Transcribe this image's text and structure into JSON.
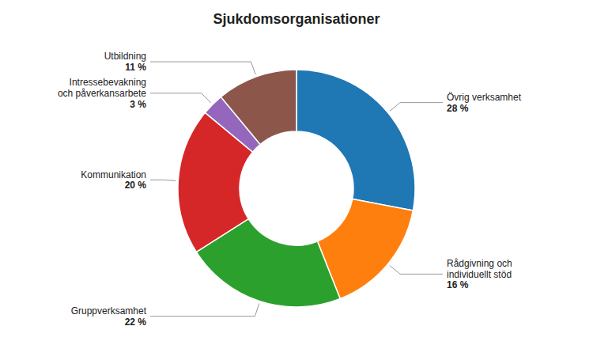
{
  "chart_data": {
    "type": "donut",
    "title": "Sjukdomsorganisationer",
    "categories": [
      "Övrig verksamhet",
      "Rådgivning och\nindividuellt stöd",
      "Gruppverksamhet",
      "Kommunikation",
      "Intressebevakning\noch påverkansarbete",
      "Utbildning"
    ],
    "values": [
      28,
      16,
      22,
      20,
      3,
      11
    ],
    "value_labels": [
      "28 %",
      "16 %",
      "22 %",
      "20 %",
      "3 %",
      "11 %"
    ],
    "data_labels": true
  }
}
